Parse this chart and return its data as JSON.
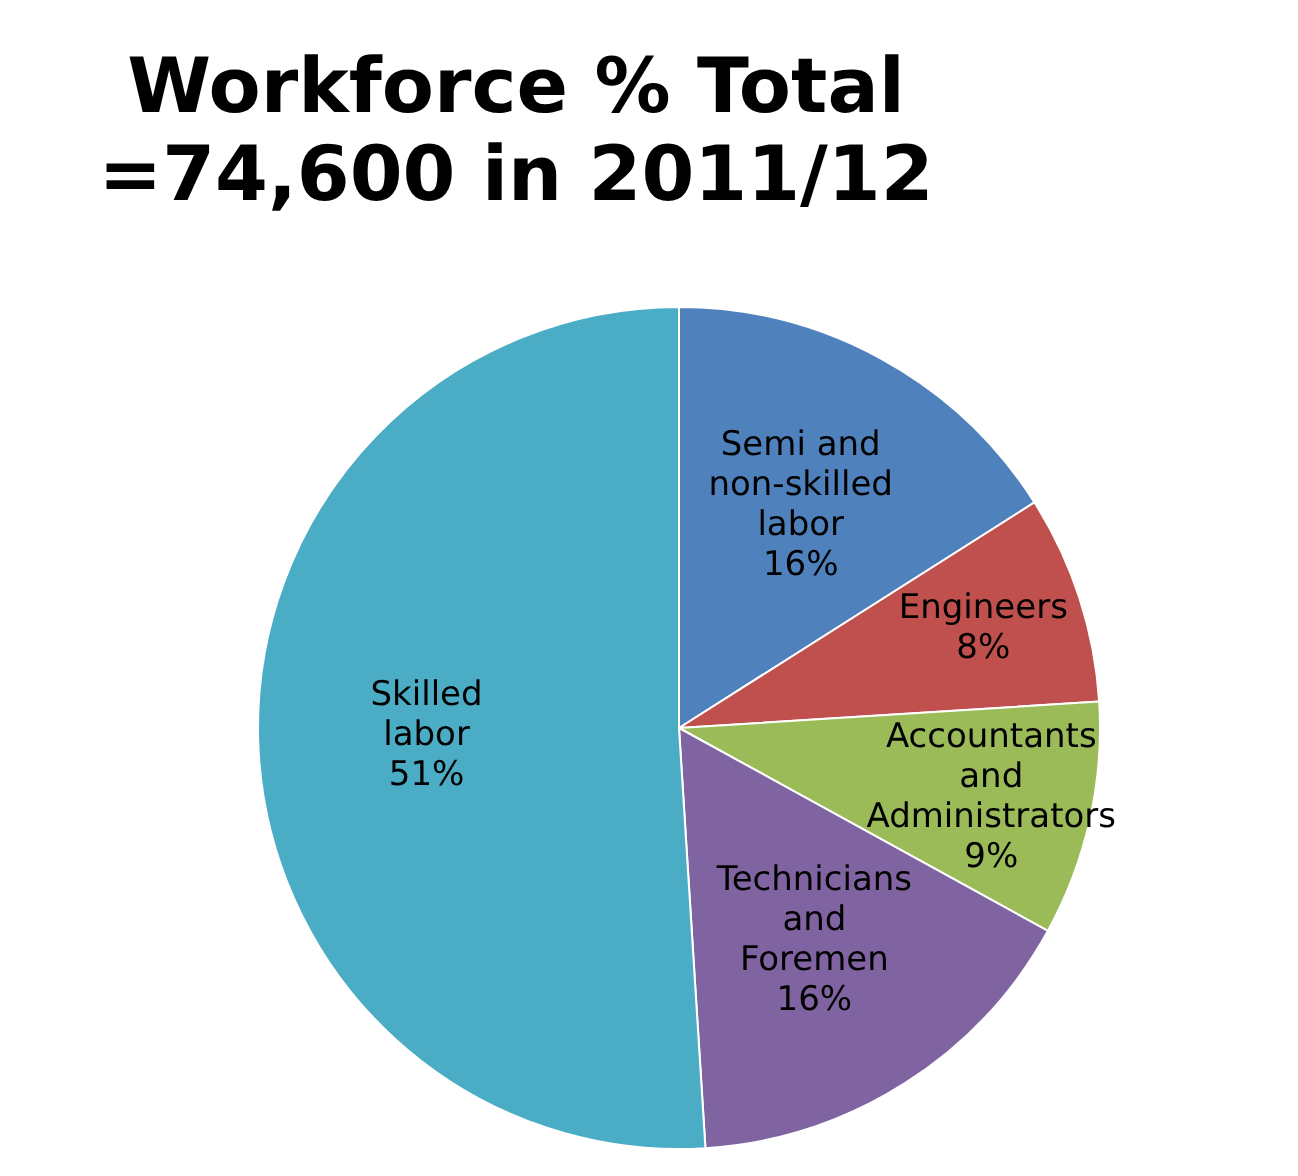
{
  "chart_data": {
    "type": "pie",
    "title": "Workforce % Total =74,600 in 2011/12",
    "categories": [
      "Semi and non-skilled labor",
      "Engineers",
      "Accountants and Administrators",
      "Technicians and Foremen",
      "Skilled labor"
    ],
    "values": [
      16,
      8,
      9,
      16,
      51
    ],
    "value_labels": [
      "16%",
      "8%",
      "9%",
      "16%",
      "51%"
    ],
    "colors": [
      "#4f81bd",
      "#c0504d",
      "#9bbb59",
      "#8064a2",
      "#4bacc6"
    ],
    "legend": false
  }
}
